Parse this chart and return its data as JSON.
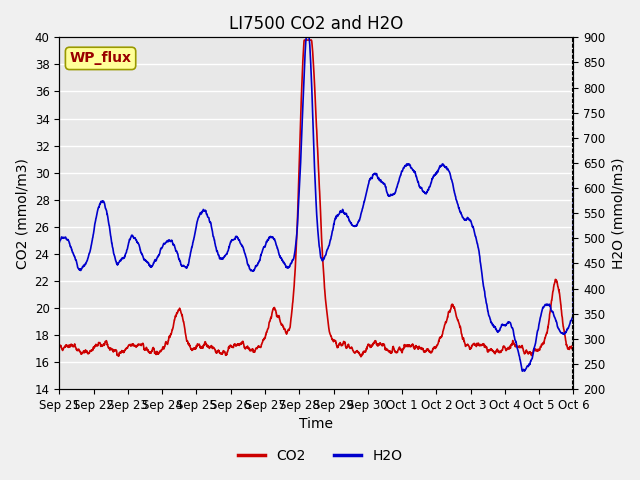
{
  "title": "LI7500 CO2 and H2O",
  "xlabel": "Time",
  "ylabel_left": "CO2 (mmol/m3)",
  "ylabel_right": "H2O (mmol/m3)",
  "ylim_left": [
    14,
    40
  ],
  "ylim_right": [
    200,
    900
  ],
  "yticks_left": [
    14,
    16,
    18,
    20,
    22,
    24,
    26,
    28,
    30,
    32,
    34,
    36,
    38,
    40
  ],
  "yticks_right": [
    200,
    250,
    300,
    350,
    400,
    450,
    500,
    550,
    600,
    650,
    700,
    750,
    800,
    850,
    900
  ],
  "xtick_labels": [
    "Sep 21",
    "Sep 22",
    "Sep 23",
    "Sep 24",
    "Sep 25",
    "Sep 26",
    "Sep 27",
    "Sep 28",
    "Sep 29",
    "Sep 30",
    "Oct 1",
    "Oct 2",
    "Oct 3",
    "Oct 4",
    "Oct 5",
    "Oct 6"
  ],
  "co2_color": "#cc0000",
  "h2o_color": "#0000cc",
  "background_color": "#f0f0f0",
  "plot_bg_color": "#e8e8e8",
  "grid_color": "#ffffff",
  "annotation_text": "WP_flux",
  "annotation_bg": "#ffff99",
  "annotation_border": "#999900",
  "annotation_text_color": "#990000",
  "title_fontsize": 12,
  "axis_fontsize": 10,
  "tick_fontsize": 8.5,
  "legend_fontsize": 10,
  "line_width": 1.2
}
